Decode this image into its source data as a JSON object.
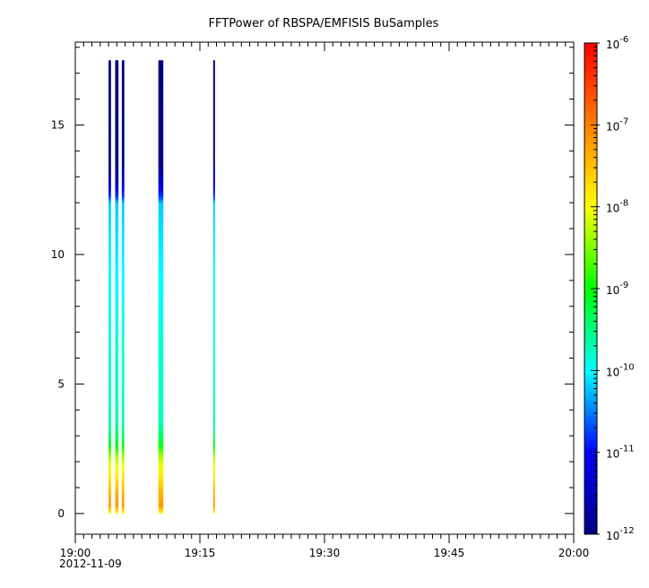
{
  "chart_data": {
    "type": "heatmap",
    "title": "FFTPower of RBSPA/EMFISIS  BuSamples",
    "xlabel": "",
    "ylabel": "",
    "x_ticks": [
      {
        "minute": 0,
        "label": "19:00"
      },
      {
        "minute": 15,
        "label": "19:15"
      },
      {
        "minute": 30,
        "label": "19:30"
      },
      {
        "minute": 45,
        "label": "19:45"
      },
      {
        "minute": 60,
        "label": "20:00"
      }
    ],
    "x_date_label": "2012-11-09",
    "xlim_minutes": [
      0,
      60
    ],
    "ylim": [
      -0.8,
      18.2
    ],
    "y_ticks": [
      0,
      5,
      10,
      15
    ],
    "colorbar": {
      "scale": "log",
      "min_exp": -12,
      "max_exp": -6,
      "ticks": [
        {
          "exp": -12,
          "label": "10",
          "sup": "-12"
        },
        {
          "exp": -11,
          "label": "10",
          "sup": "-11"
        },
        {
          "exp": -10,
          "label": "10",
          "sup": "-10"
        },
        {
          "exp": -9,
          "label": "10",
          "sup": "-9"
        },
        {
          "exp": -8,
          "label": "10",
          "sup": "-8"
        },
        {
          "exp": -7,
          "label": "10",
          "sup": "-7"
        },
        {
          "exp": -6,
          "label": "10",
          "sup": "-6"
        }
      ],
      "colors": [
        "#00007f",
        "#0000ff",
        "#00ffff",
        "#00ff00",
        "#ffff00",
        "#ff7f00",
        "#ff0000"
      ]
    },
    "columns": [
      {
        "start_min": 4.0,
        "end_min": 4.3
      },
      {
        "start_min": 4.8,
        "end_min": 5.2
      },
      {
        "start_min": 5.6,
        "end_min": 5.9
      },
      {
        "start_min": 10.0,
        "end_min": 10.6
      },
      {
        "start_min": 16.6,
        "end_min": 16.8
      }
    ],
    "spectrum_profile": [
      {
        "y": 0.0,
        "log10_power": -8.0
      },
      {
        "y": 0.3,
        "log10_power": -7.2
      },
      {
        "y": 0.8,
        "log10_power": -7.4
      },
      {
        "y": 1.5,
        "log10_power": -7.9
      },
      {
        "y": 2.2,
        "log10_power": -8.3
      },
      {
        "y": 2.7,
        "log10_power": -9.2
      },
      {
        "y": 3.5,
        "log10_power": -9.7
      },
      {
        "y": 6.0,
        "log10_power": -9.8
      },
      {
        "y": 12.1,
        "log10_power": -10.2
      },
      {
        "y": 12.3,
        "log10_power": -11.0
      },
      {
        "y": 12.8,
        "log10_power": -11.5
      },
      {
        "y": 13.5,
        "log10_power": -11.9
      },
      {
        "y": 17.5,
        "log10_power": -12.0
      }
    ]
  }
}
